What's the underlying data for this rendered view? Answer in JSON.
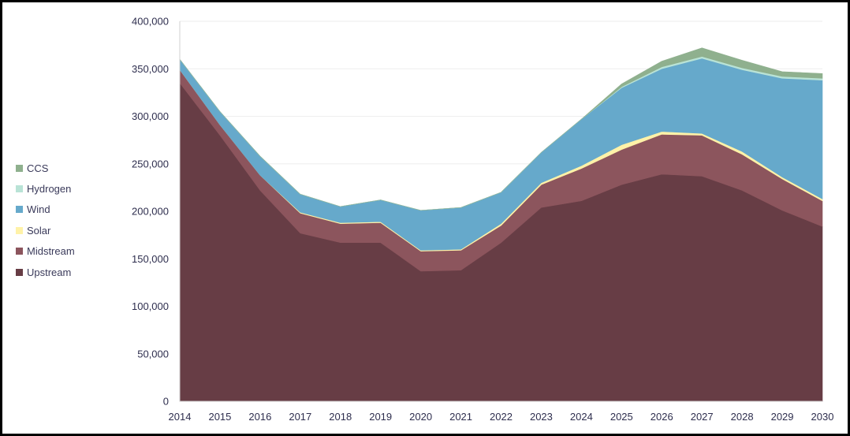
{
  "chart_data": {
    "type": "area",
    "stacked": true,
    "title": "",
    "xlabel": "",
    "ylabel": "",
    "x": [
      "2014",
      "2015",
      "2016",
      "2017",
      "2018",
      "2019",
      "2020",
      "2021",
      "2022",
      "2023",
      "2024",
      "2025",
      "2026",
      "2027",
      "2028",
      "2029",
      "2030"
    ],
    "ylim": [
      0,
      400000
    ],
    "yticks": [
      0,
      50000,
      100000,
      150000,
      200000,
      250000,
      300000,
      350000,
      400000
    ],
    "ytick_labels": [
      "0",
      "50,000",
      "100,000",
      "150,000",
      "200,000",
      "250,000",
      "300,000",
      "350,000",
      "400,000"
    ],
    "grid": true,
    "legend_position": "left",
    "series": [
      {
        "name": "Upstream",
        "color": "#673d45",
        "values": [
          335000,
          280000,
          222000,
          177000,
          167000,
          167000,
          137000,
          138000,
          167000,
          204000,
          211000,
          228000,
          239000,
          237000,
          222000,
          201000,
          184000
        ]
      },
      {
        "name": "Midstream",
        "color": "#8c555d",
        "values": [
          14000,
          11000,
          16000,
          21000,
          20000,
          21000,
          21000,
          21000,
          18000,
          24000,
          34000,
          37000,
          42000,
          43000,
          38000,
          33000,
          27000
        ]
      },
      {
        "name": "Solar",
        "color": "#fff2a8",
        "values": [
          0,
          0,
          0,
          1000,
          1000,
          1000,
          1000,
          1000,
          2000,
          2000,
          3000,
          5000,
          3000,
          2000,
          3000,
          2000,
          2000
        ]
      },
      {
        "name": "Wind",
        "color": "#66a9cb",
        "values": [
          11000,
          14000,
          20000,
          19000,
          17000,
          23000,
          42000,
          44000,
          33000,
          32000,
          49000,
          60000,
          66000,
          79000,
          86000,
          104000,
          125000
        ]
      },
      {
        "name": "Hydrogen",
        "color": "#b9e3d6",
        "values": [
          0,
          0,
          0,
          0,
          0,
          0,
          0,
          0,
          0,
          0,
          0,
          1000,
          2000,
          2000,
          2000,
          2000,
          2000
        ]
      },
      {
        "name": "CCS",
        "color": "#8fb08e",
        "values": [
          0,
          0,
          0,
          0,
          0,
          0,
          0,
          0,
          0,
          0,
          0,
          3000,
          6000,
          9000,
          8000,
          5000,
          5000
        ]
      }
    ]
  }
}
